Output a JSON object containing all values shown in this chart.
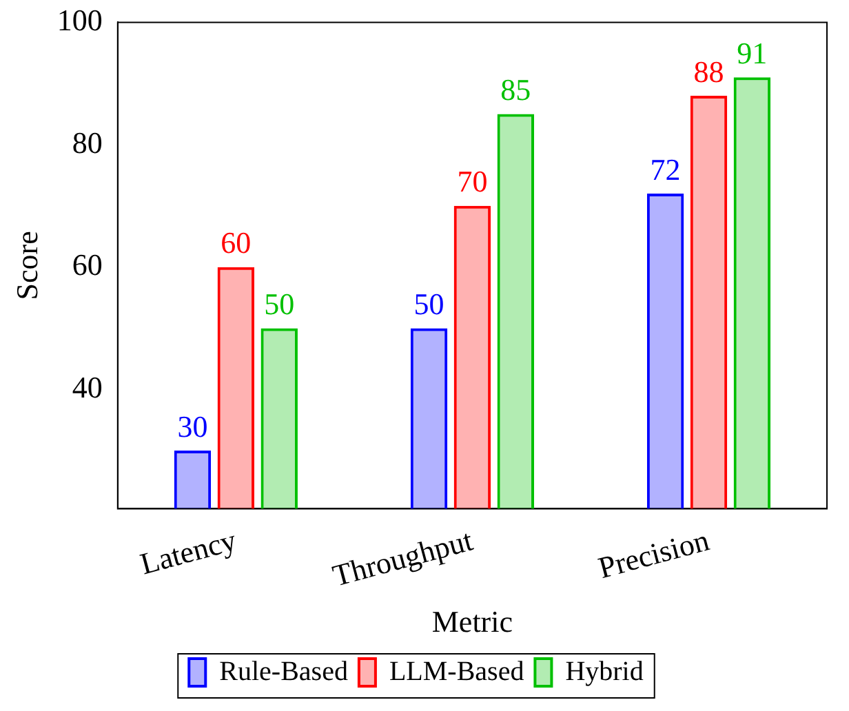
{
  "chart_data": {
    "type": "bar",
    "xlabel": "Metric",
    "ylabel": "Score",
    "categories": [
      "Latency",
      "Throughput",
      "Precision"
    ],
    "series": [
      {
        "name": "Rule-Based",
        "color": "#0000ff",
        "values": [
          30,
          50,
          72
        ]
      },
      {
        "name": "LLM-Based",
        "color": "#ff0000",
        "values": [
          60,
          70,
          88
        ]
      },
      {
        "name": "Hybrid",
        "color": "#00c000",
        "values": [
          50,
          85,
          91
        ]
      }
    ],
    "ylim": [
      20.5,
      100
    ],
    "yticks": [
      40,
      60,
      80,
      100
    ],
    "grid": false,
    "legend": "bottom",
    "data_labels": true
  }
}
